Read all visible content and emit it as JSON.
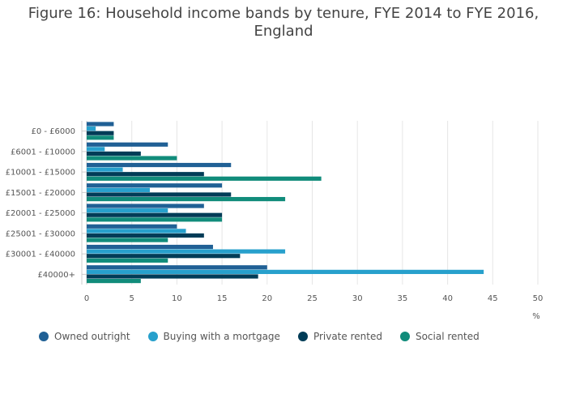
{
  "title_lines": [
    "Figure 16: Household income bands by tenure, FYE 2014 to FYE 2016,",
    "England"
  ],
  "chart_data": {
    "type": "bar",
    "orientation": "horizontal",
    "title": "Figure 16: Household income bands by tenure, FYE 2014 to FYE 2016, England",
    "xlabel": "%",
    "ylabel": "",
    "xlim": [
      0,
      50
    ],
    "xticks": [
      0,
      5,
      10,
      15,
      20,
      25,
      30,
      35,
      40,
      45,
      50
    ],
    "grid": true,
    "legend_position": "bottom",
    "categories": [
      "£0 - £6000",
      "£6001 - £10000",
      "£10001 - £15000",
      "£15001 - £20000",
      "£20001 - £25000",
      "£25001 - £30000",
      "£30001 - £40000",
      "£40000+"
    ],
    "series": [
      {
        "name": "Owned outright",
        "color": "#206095",
        "values": [
          3,
          9,
          16,
          15,
          13,
          10,
          14,
          20
        ]
      },
      {
        "name": "Buying with a mortgage",
        "color": "#27a0cc",
        "values": [
          1,
          2,
          4,
          7,
          9,
          11,
          22,
          44
        ]
      },
      {
        "name": "Private rented",
        "color": "#003c57",
        "values": [
          3,
          6,
          13,
          16,
          15,
          13,
          17,
          19
        ]
      },
      {
        "name": "Social rented",
        "color": "#118c7b",
        "values": [
          3,
          10,
          26,
          22,
          15,
          9,
          9,
          6
        ]
      }
    ]
  }
}
